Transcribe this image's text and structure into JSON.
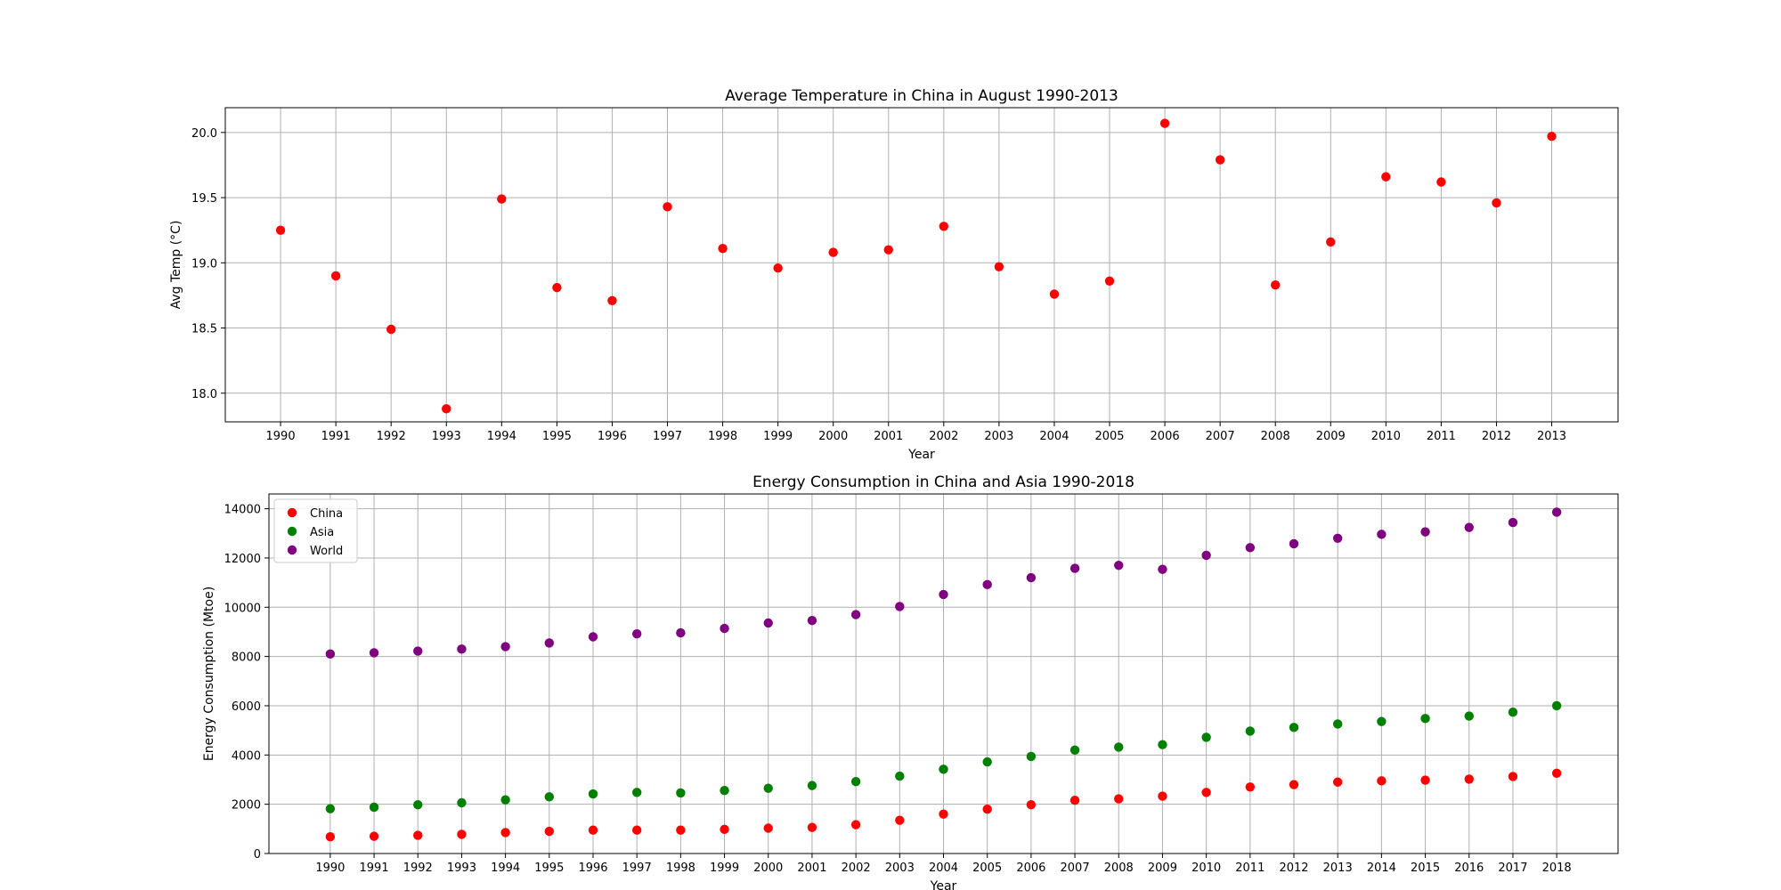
{
  "chart_data": [
    {
      "type": "scatter",
      "title": "Average Temperature in China in August 1990-2013",
      "xlabel": "Year",
      "ylabel": "Avg Temp (°C)",
      "x": [
        1990,
        1991,
        1992,
        1993,
        1994,
        1995,
        1996,
        1997,
        1998,
        1999,
        2000,
        2001,
        2002,
        2003,
        2004,
        2005,
        2006,
        2007,
        2008,
        2009,
        2010,
        2011,
        2012,
        2013
      ],
      "xlim": [
        1989,
        2014.2
      ],
      "ylim": [
        17.78,
        20.19
      ],
      "yticks": [
        18.0,
        18.5,
        19.0,
        19.5,
        20.0
      ],
      "grid": true,
      "legend": null,
      "series": [
        {
          "color": "#ff0000",
          "values": [
            19.25,
            18.9,
            18.49,
            17.88,
            19.49,
            18.81,
            18.71,
            19.43,
            19.11,
            18.96,
            19.08,
            19.1,
            19.28,
            18.97,
            18.76,
            18.86,
            20.07,
            19.79,
            18.83,
            19.16,
            19.66,
            19.62,
            19.46,
            19.97
          ]
        }
      ]
    },
    {
      "type": "scatter",
      "title": "Energy Consumption in China and Asia 1990-2018",
      "xlabel": "Year",
      "ylabel": "Energy Consumption (Mtoe)",
      "x": [
        1990,
        1991,
        1992,
        1993,
        1994,
        1995,
        1996,
        1997,
        1998,
        1999,
        2000,
        2001,
        2002,
        2003,
        2004,
        2005,
        2006,
        2007,
        2008,
        2009,
        2010,
        2011,
        2012,
        2013,
        2014,
        2015,
        2016,
        2017,
        2018
      ],
      "xlim": [
        1988.6,
        2019.4
      ],
      "ylim": [
        0,
        14600
      ],
      "yticks": [
        0,
        2000,
        4000,
        6000,
        8000,
        10000,
        12000,
        14000
      ],
      "grid": true,
      "legend": "top-left",
      "series": [
        {
          "name": "China",
          "color": "#ff0000",
          "values": [
            680,
            700,
            740,
            780,
            850,
            900,
            950,
            950,
            950,
            980,
            1030,
            1060,
            1170,
            1350,
            1600,
            1800,
            1980,
            2160,
            2220,
            2330,
            2480,
            2700,
            2800,
            2900,
            2950,
            2980,
            3020,
            3130,
            3260
          ]
        },
        {
          "name": "Asia",
          "color": "#008000",
          "values": [
            1820,
            1880,
            1980,
            2060,
            2180,
            2300,
            2420,
            2480,
            2460,
            2560,
            2650,
            2760,
            2920,
            3140,
            3420,
            3720,
            3940,
            4200,
            4320,
            4420,
            4720,
            4970,
            5120,
            5260,
            5360,
            5480,
            5580,
            5740,
            6000
          ]
        },
        {
          "name": "World",
          "color": "#800080",
          "values": [
            8100,
            8150,
            8220,
            8300,
            8400,
            8550,
            8800,
            8920,
            8960,
            9140,
            9360,
            9460,
            9700,
            10030,
            10520,
            10920,
            11200,
            11580,
            11700,
            11540,
            12110,
            12420,
            12580,
            12800,
            12960,
            13060,
            13240,
            13440,
            13860
          ]
        }
      ]
    }
  ]
}
